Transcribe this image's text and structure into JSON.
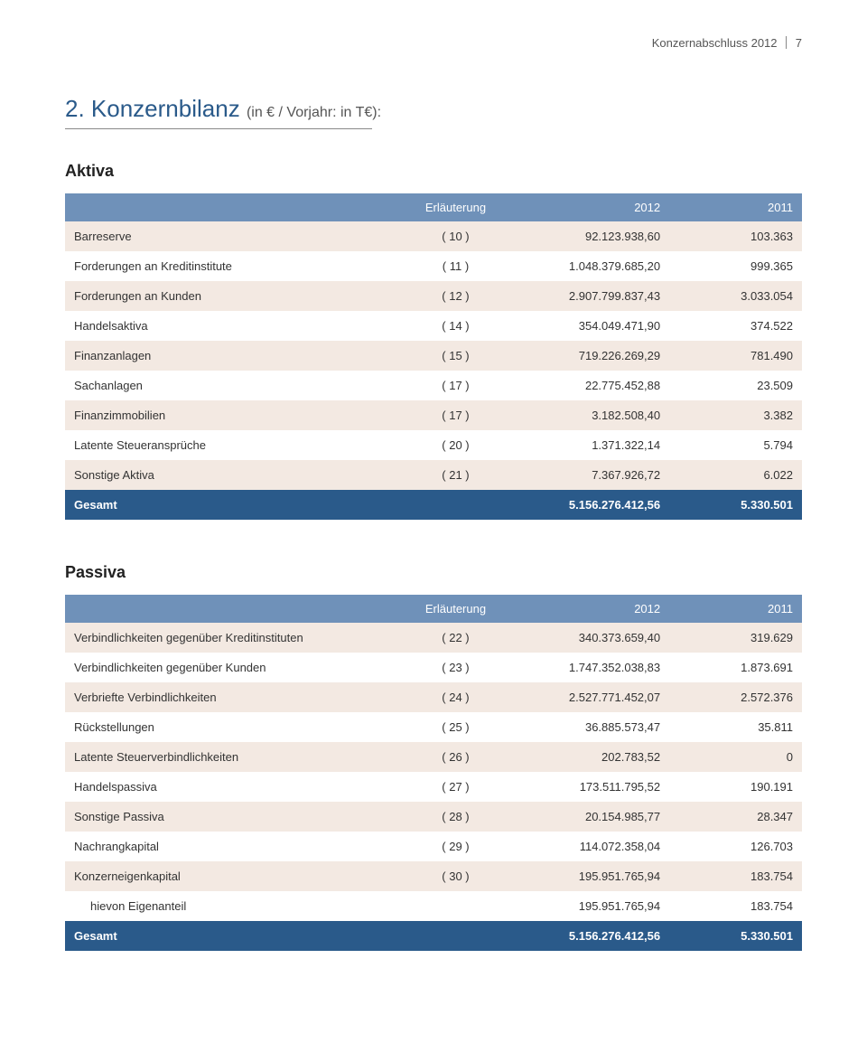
{
  "page_header": {
    "title": "Konzernabschluss 2012",
    "page_number": "7"
  },
  "section": {
    "number": "2.",
    "title": "Konzernbilanz",
    "note": "(in € / Vorjahr: in T€):"
  },
  "colors": {
    "header_row_bg": "#6f91b9",
    "header_row_text": "#ffffff",
    "zebra_a": "#f3e9e2",
    "zebra_b": "#ffffff",
    "total_row_bg": "#2a5a8a",
    "total_row_text": "#ffffff",
    "section_title": "#2a5a8a"
  },
  "tables": {
    "aktiva": {
      "title": "Aktiva",
      "columns": [
        "",
        "Erläuterung",
        "2012",
        "2011"
      ],
      "rows": [
        {
          "label": "Barreserve",
          "note": "( 10 )",
          "v2012": "92.123.938,60",
          "v2011": "103.363"
        },
        {
          "label": "Forderungen an Kreditinstitute",
          "note": "( 11 )",
          "v2012": "1.048.379.685,20",
          "v2011": "999.365"
        },
        {
          "label": "Forderungen an Kunden",
          "note": "( 12 )",
          "v2012": "2.907.799.837,43",
          "v2011": "3.033.054"
        },
        {
          "label": "Handelsaktiva",
          "note": "( 14 )",
          "v2012": "354.049.471,90",
          "v2011": "374.522"
        },
        {
          "label": "Finanzanlagen",
          "note": "( 15 )",
          "v2012": "719.226.269,29",
          "v2011": "781.490"
        },
        {
          "label": "Sachanlagen",
          "note": "( 17 )",
          "v2012": "22.775.452,88",
          "v2011": "23.509"
        },
        {
          "label": "Finanzimmobilien",
          "note": "( 17 )",
          "v2012": "3.182.508,40",
          "v2011": "3.382"
        },
        {
          "label": "Latente Steueransprüche",
          "note": "( 20 )",
          "v2012": "1.371.322,14",
          "v2011": "5.794"
        },
        {
          "label": "Sonstige Aktiva",
          "note": "( 21 )",
          "v2012": "7.367.926,72",
          "v2011": "6.022"
        }
      ],
      "total": {
        "label": "Gesamt",
        "note": "",
        "v2012": "5.156.276.412,56",
        "v2011": "5.330.501"
      }
    },
    "passiva": {
      "title": "Passiva",
      "columns": [
        "",
        "Erläuterung",
        "2012",
        "2011"
      ],
      "rows": [
        {
          "label": "Verbindlichkeiten gegenüber Kreditinstituten",
          "note": "( 22 )",
          "v2012": "340.373.659,40",
          "v2011": "319.629"
        },
        {
          "label": "Verbindlichkeiten gegenüber Kunden",
          "note": "( 23 )",
          "v2012": "1.747.352.038,83",
          "v2011": "1.873.691"
        },
        {
          "label": "Verbriefte Verbindlichkeiten",
          "note": "( 24 )",
          "v2012": "2.527.771.452,07",
          "v2011": "2.572.376"
        },
        {
          "label": "Rückstellungen",
          "note": "( 25 )",
          "v2012": "36.885.573,47",
          "v2011": "35.811"
        },
        {
          "label": "Latente Steuerverbindlichkeiten",
          "note": "( 26 )",
          "v2012": "202.783,52",
          "v2011": "0"
        },
        {
          "label": "Handelspassiva",
          "note": "( 27 )",
          "v2012": "173.511.795,52",
          "v2011": "190.191"
        },
        {
          "label": "Sonstige Passiva",
          "note": "( 28 )",
          "v2012": "20.154.985,77",
          "v2011": "28.347"
        },
        {
          "label": "Nachrangkapital",
          "note": "( 29 )",
          "v2012": "114.072.358,04",
          "v2011": "126.703"
        },
        {
          "label": "Konzerneigenkapital",
          "note": "( 30 )",
          "v2012": "195.951.765,94",
          "v2011": "183.754"
        },
        {
          "label": "hievon Eigenanteil",
          "note": "",
          "v2012": "195.951.765,94",
          "v2011": "183.754",
          "indent": true
        }
      ],
      "total": {
        "label": "Gesamt",
        "note": "",
        "v2012": "5.156.276.412,56",
        "v2011": "5.330.501"
      }
    }
  },
  "fontsize": {
    "body": 13,
    "section_title": 26,
    "subsection": 18
  }
}
